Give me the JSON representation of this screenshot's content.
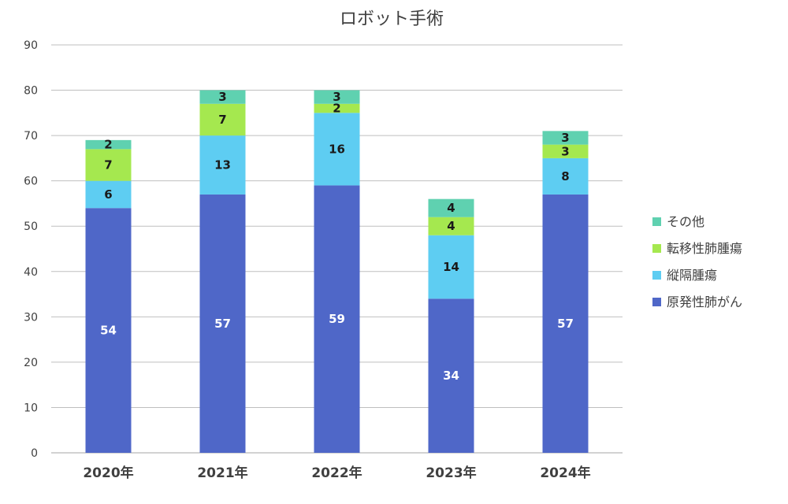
{
  "chart_data": {
    "type": "bar",
    "stacked": true,
    "title": "ロボット手術",
    "categories": [
      "2020年",
      "2021年",
      "2022年",
      "2023年",
      "2024年"
    ],
    "series": [
      {
        "name": "原発性肺がん",
        "color": "#4f67c8",
        "label_color": "#ffffff",
        "values": [
          54,
          57,
          59,
          34,
          57
        ]
      },
      {
        "name": "縦隔腫瘍",
        "color": "#5ecdf2",
        "label_color": "#1a1a1a",
        "values": [
          6,
          13,
          16,
          14,
          8
        ]
      },
      {
        "name": "転移性肺腫瘍",
        "color": "#a5e84f",
        "label_color": "#1a1a1a",
        "values": [
          7,
          7,
          2,
          4,
          3
        ]
      },
      {
        "name": "その他",
        "color": "#5fd1b0",
        "label_color": "#1a1a1a",
        "values": [
          2,
          3,
          3,
          4,
          3
        ]
      }
    ],
    "ylim": [
      0,
      90
    ],
    "yticks": [
      0,
      10,
      20,
      30,
      40,
      50,
      60,
      70,
      80,
      90
    ],
    "grid": true,
    "legend": "right"
  }
}
